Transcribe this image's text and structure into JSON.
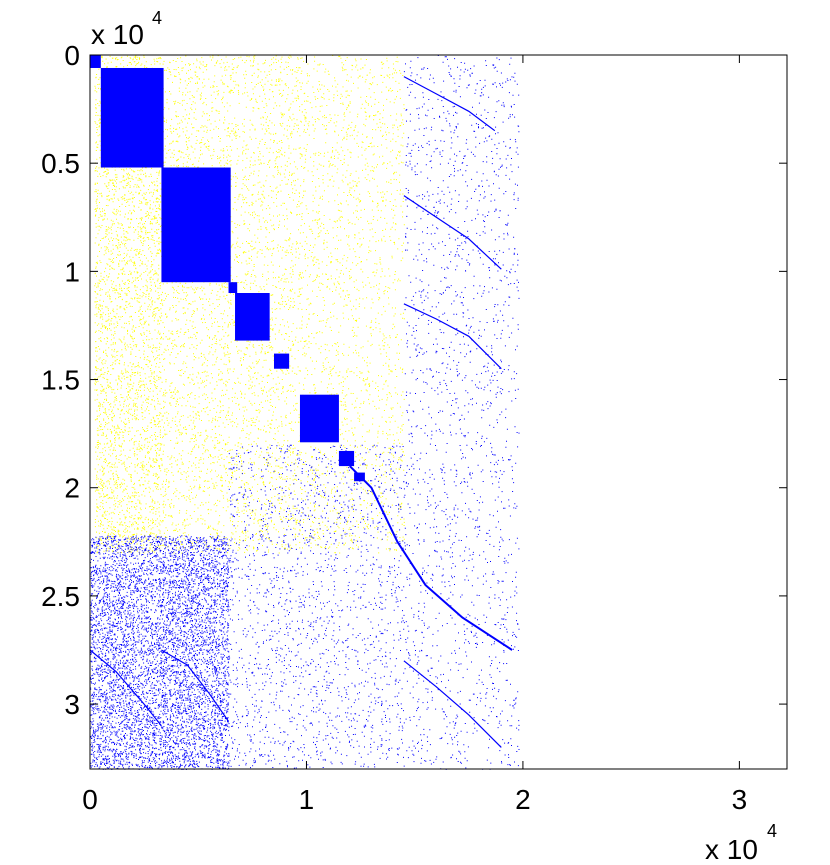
{
  "chart_data": {
    "type": "scatter",
    "title": "",
    "xlabel": "",
    "ylabel": "",
    "x_exponent_label": "x 10",
    "x_exponent_power": "4",
    "y_exponent_label": "x 10",
    "y_exponent_power": "4",
    "x_axis": {
      "lim": [
        0,
        3.22
      ],
      "ticks": [
        0,
        1,
        2,
        3
      ],
      "tick_labels": [
        "0",
        "1",
        "2",
        "3"
      ],
      "multiplier": "x 10^4"
    },
    "y_axis": {
      "lim": [
        0,
        3.3
      ],
      "reversed": true,
      "ticks": [
        0,
        0.5,
        1,
        1.5,
        2,
        2.5,
        3
      ],
      "tick_labels": [
        "0",
        "0.5",
        "1",
        "1.5",
        "2",
        "2.5",
        "3"
      ],
      "multiplier": "x 10^4"
    },
    "grid": false,
    "legend": "none",
    "colors": {
      "primary": "#0000ff",
      "secondary": "#ffff00",
      "axes": "#000000"
    },
    "series": [
      {
        "color": "#0000ff",
        "diagonal_blocks": [
          {
            "x": [
              0,
              0.05
            ],
            "y": [
              0,
              0.06
            ]
          },
          {
            "x": [
              0.05,
              0.34
            ],
            "y": [
              0.06,
              0.52
            ]
          },
          {
            "x": [
              0.33,
              0.65
            ],
            "y": [
              0.52,
              1.05
            ]
          },
          {
            "x": [
              0.64,
              0.68
            ],
            "y": [
              1.05,
              1.1
            ]
          },
          {
            "x": [
              0.67,
              0.83
            ],
            "y": [
              1.1,
              1.32
            ]
          },
          {
            "x": [
              0.85,
              0.92
            ],
            "y": [
              1.38,
              1.45
            ]
          },
          {
            "x": [
              0.97,
              1.15
            ],
            "y": [
              1.57,
              1.79
            ]
          },
          {
            "x": [
              1.15,
              1.22
            ],
            "y": [
              1.83,
              1.9
            ]
          },
          {
            "x": [
              1.22,
              1.27
            ],
            "y": [
              1.93,
              1.97
            ]
          }
        ],
        "diagonal_trace": [
          [
            1.2,
            1.9
          ],
          [
            1.3,
            2.0
          ],
          [
            1.42,
            2.25
          ],
          [
            1.55,
            2.45
          ],
          [
            1.72,
            2.6
          ],
          [
            1.95,
            2.75
          ]
        ],
        "arcs": [
          [
            [
              1.45,
              0.1
            ],
            [
              1.6,
              0.18
            ],
            [
              1.75,
              0.26
            ],
            [
              1.87,
              0.35
            ]
          ],
          [
            [
              1.45,
              0.65
            ],
            [
              1.6,
              0.75
            ],
            [
              1.75,
              0.85
            ],
            [
              1.9,
              0.99
            ]
          ],
          [
            [
              1.45,
              1.15
            ],
            [
              1.6,
              1.22
            ],
            [
              1.75,
              1.3
            ],
            [
              1.9,
              1.45
            ]
          ],
          [
            [
              1.45,
              2.8
            ],
            [
              1.6,
              2.92
            ],
            [
              1.75,
              3.05
            ],
            [
              1.9,
              3.2
            ]
          ],
          [
            [
              0,
              2.75
            ],
            [
              0.12,
              2.85
            ],
            [
              0.25,
              3.0
            ],
            [
              0.33,
              3.1
            ]
          ],
          [
            [
              0.33,
              2.75
            ],
            [
              0.45,
              2.82
            ],
            [
              0.55,
              2.95
            ],
            [
              0.64,
              3.08
            ]
          ]
        ],
        "scatter_regions": [
          {
            "x": [
              0,
              0.33
            ],
            "y": [
              2.22,
              3.3
            ],
            "density": "high"
          },
          {
            "x": [
              0.33,
              0.64
            ],
            "y": [
              2.22,
              3.3
            ],
            "density": "high"
          },
          {
            "x": [
              0.64,
              1.45
            ],
            "y": [
              1.8,
              3.3
            ],
            "density": "medium"
          },
          {
            "x": [
              1.45,
              1.98
            ],
            "y": [
              0,
              3.3
            ],
            "density": "medium"
          }
        ]
      },
      {
        "color": "#ffff00",
        "scatter_regions": [
          {
            "x": [
              0.02,
              0.33
            ],
            "y": [
              0,
              2.3
            ],
            "density": "high"
          },
          {
            "x": [
              0.33,
              0.64
            ],
            "y": [
              0,
              2.3
            ],
            "density": "medium"
          },
          {
            "x": [
              0.64,
              0.98
            ],
            "y": [
              0,
              2.3
            ],
            "density": "medium"
          },
          {
            "x": [
              0.98,
              1.45
            ],
            "y": [
              0,
              2.3
            ],
            "density": "medium"
          }
        ]
      }
    ]
  }
}
